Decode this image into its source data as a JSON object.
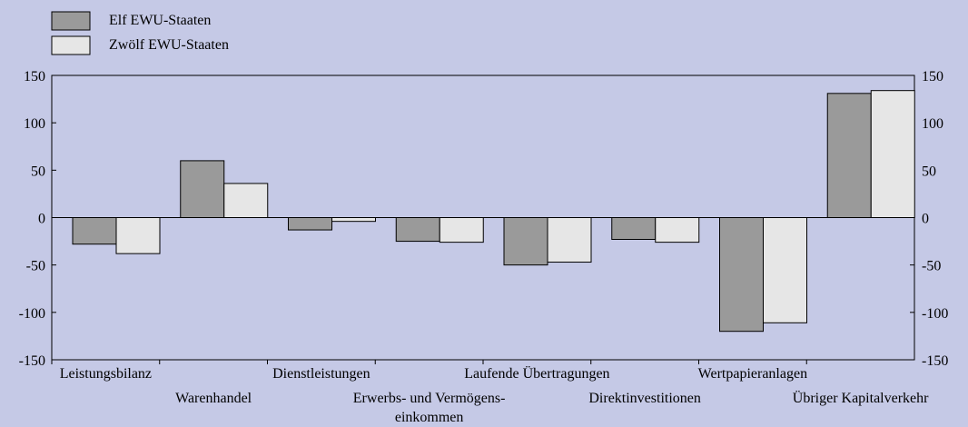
{
  "colors": {
    "background": "#c5c9e6",
    "series_1": "#9a9a9a",
    "series_2": "#e6e6e6",
    "axis": "#000000"
  },
  "chart_data": {
    "type": "bar",
    "title": "",
    "xlabel": "",
    "ylabel": "",
    "ylim": [
      -150,
      150
    ],
    "yticks": [
      150,
      100,
      50,
      0,
      -50,
      -100,
      -150
    ],
    "tick_labels": [
      "150",
      "100",
      "50",
      "0",
      "-50",
      "-100",
      "-150"
    ],
    "grid": false,
    "legend_position": "top-left",
    "categories": [
      [
        "Leistungsbilanz"
      ],
      [
        "Warenhandel"
      ],
      [
        "Dienstleistungen"
      ],
      [
        "Erwerbs- und Vermögens-",
        "einkommen"
      ],
      [
        "Laufende Übertragungen"
      ],
      [
        "Direktinvestitionen"
      ],
      [
        "Wertpapieranlagen"
      ],
      [
        "Übriger Kapitalverkehr"
      ]
    ],
    "series": [
      {
        "name": "Elf EWU-Staaten",
        "values": [
          -28,
          60,
          -13,
          -25,
          -50,
          -23,
          -120,
          131
        ]
      },
      {
        "name": "Zwölf EWU-Staaten",
        "values": [
          -38,
          36,
          -4,
          -26,
          -47,
          -26,
          -111,
          134
        ]
      }
    ]
  }
}
